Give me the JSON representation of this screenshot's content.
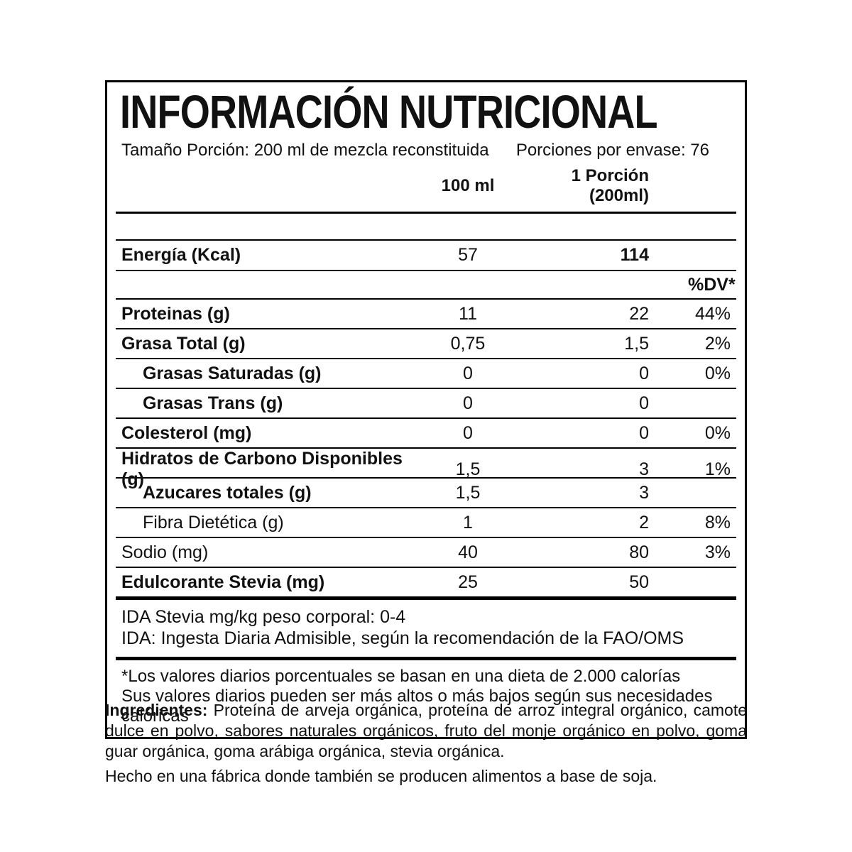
{
  "colors": {
    "background": "#ffffff",
    "text": "#111111",
    "border": "#000000"
  },
  "label": {
    "title": "INFORMACIÓN NUTRICIONAL",
    "serving_size": "Tamaño Porción: 200 ml de mezcla reconstituida",
    "servings_per_container": "Porciones por envase: 76",
    "columns": {
      "per_100": "100 ml",
      "per_portion": "1 Porción (200ml)",
      "dv": "%DV*"
    },
    "energy_row": {
      "name": "Energía (Kcal)",
      "per_100": "57",
      "per_portion": "114",
      "dv": ""
    },
    "rows": [
      {
        "name": "Proteinas (g)",
        "per_100": "11",
        "per_portion": "22",
        "dv": "44%",
        "bold": true,
        "indent": false
      },
      {
        "name": "Grasa Total (g)",
        "per_100": "0,75",
        "per_portion": "1,5",
        "dv": "2%",
        "bold": true,
        "indent": false
      },
      {
        "name": "Grasas Saturadas (g)",
        "per_100": "0",
        "per_portion": "0",
        "dv": "0%",
        "bold": true,
        "indent": true
      },
      {
        "name": "Grasas Trans (g)",
        "per_100": "0",
        "per_portion": "0",
        "dv": "",
        "bold": true,
        "indent": true
      },
      {
        "name": "Colesterol (mg)",
        "per_100": "0",
        "per_portion": "0",
        "dv": "0%",
        "bold": true,
        "indent": false
      },
      {
        "name": "Hidratos de Carbono Disponibles (g)",
        "per_100": "1,5",
        "per_portion": "3",
        "dv": "1%",
        "bold": true,
        "indent": false
      },
      {
        "name": "Azucares totales (g)",
        "per_100": "1,5",
        "per_portion": "3",
        "dv": "",
        "bold": true,
        "indent": true
      },
      {
        "name": "Fibra Dietética (g)",
        "per_100": "1",
        "per_portion": "2",
        "dv": "8%",
        "bold": false,
        "indent": true
      },
      {
        "name": "Sodio (mg)",
        "per_100": "40",
        "per_portion": "80",
        "dv": "3%",
        "bold": false,
        "indent": false
      },
      {
        "name": "Edulcorante Stevia (mg)",
        "per_100": "25",
        "per_portion": "50",
        "dv": "",
        "bold": true,
        "indent": false
      }
    ],
    "ida_notes": [
      "IDA Stevia mg/kg peso corporal: 0-4",
      "IDA: Ingesta Diaria Admisible, según la recomendación de la FAO/OMS"
    ],
    "footnotes": [
      "*Los valores diarios porcentuales se basan en una dieta de 2.000 calorías",
      "Sus valores diarios pueden ser más altos o más bajos según sus necesidades calóricas"
    ]
  },
  "ingredients": {
    "label": "Ingredientes:",
    "text": "Proteína de arveja orgánica, proteína de arroz integral orgánico, camote dulce en polvo, sabores naturales orgánicos, fruto del monje orgánico en polvo, goma guar orgánica, goma arábiga orgánica, stevia orgánica.",
    "allergen_note": "Hecho en una fábrica donde también se producen alimentos a base de soja."
  }
}
